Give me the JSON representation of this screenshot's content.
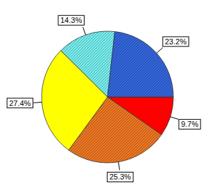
{
  "chart_data": {
    "type": "pie",
    "values": [
      9.7,
      25.3,
      27.4,
      14.3,
      23.2
    ],
    "value_labels": [
      "9.7%",
      "25.3%",
      "27.4%",
      "14.3%",
      "23.2%"
    ],
    "colors": [
      "#ff0000",
      "#ee7722",
      "#ffff00",
      "#77eeee",
      "#3366dd"
    ],
    "data_labels": true
  }
}
